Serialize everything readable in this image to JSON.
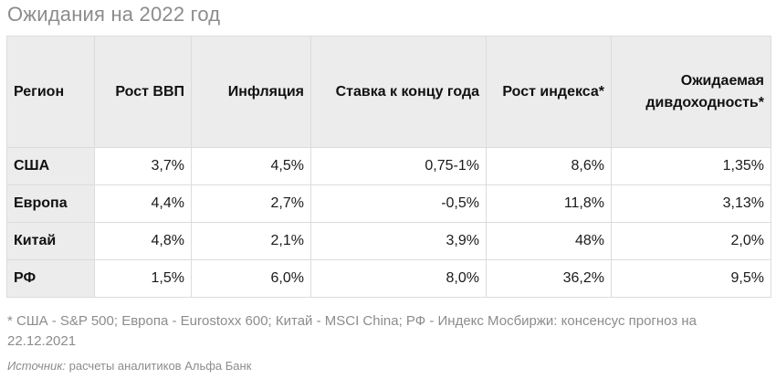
{
  "title": "Ожидания на 2022 год",
  "table": {
    "headers": [
      "Регион",
      "Рост ВВП",
      "Инфляция",
      "Ставка к концу года",
      "Рост индекса*",
      "Ожидаемая дивдоходность*"
    ],
    "rows": [
      [
        "США",
        "3,7%",
        "4,5%",
        "0,75-1%",
        "8,6%",
        "1,35%"
      ],
      [
        "Европа",
        "4,4%",
        "2,7%",
        "-0,5%",
        "11,8%",
        "3,13%"
      ],
      [
        "Китай",
        "4,8%",
        "2,1%",
        "3,9%",
        "48%",
        "2,0%"
      ],
      [
        "РФ",
        "1,5%",
        "6,0%",
        "8,0%",
        "36,2%",
        "9,5%"
      ]
    ]
  },
  "footnote": "* США - S&P 500; Европа - Eurostoxx 600; Китай - MSCI China; РФ - Индекс Мосбиржи: консенсус прогноз на 22.12.2021",
  "source": {
    "label": "Источник:",
    "text": " расчеты аналитиков Альфа Банк"
  }
}
